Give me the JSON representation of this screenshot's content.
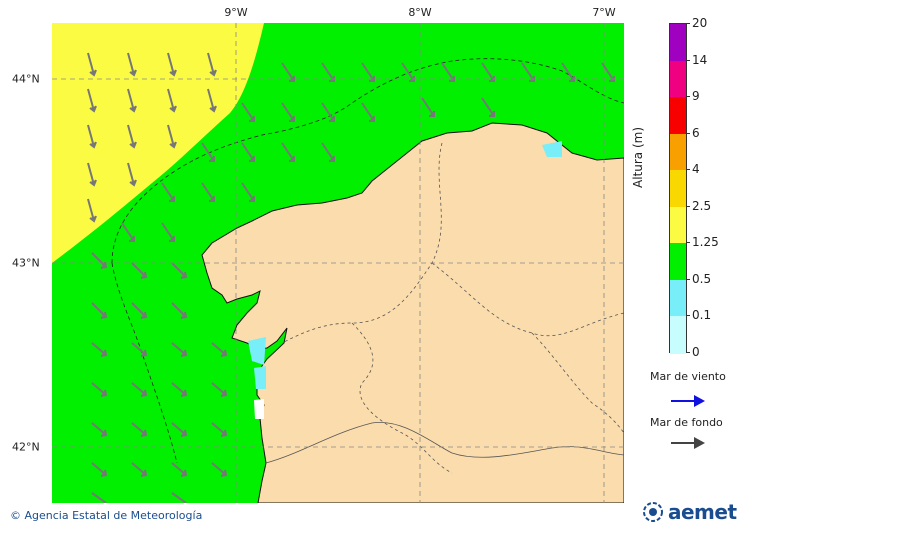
{
  "map": {
    "lon_labels": [
      "9°W",
      "8°W",
      "7°W"
    ],
    "lat_labels": [
      "44°N",
      "43°N",
      "42°N"
    ],
    "colors": {
      "land": "#fbdcac",
      "deep_sea": "#fbfb44",
      "coastal_sea": "#00f000",
      "calm_water": "#77eef8",
      "arrow": "#777777"
    }
  },
  "legend": {
    "title": "Altura (m)",
    "levels": [
      "20",
      "14",
      "9",
      "6",
      "4",
      "2.5",
      "1.25",
      "0.5",
      "0.1",
      "0"
    ],
    "colors": [
      "#a000c0",
      "#f00080",
      "#f80000",
      "#f8a000",
      "#f8d800",
      "#fbfb44",
      "#00f000",
      "#77eef8",
      "#c8fdfd"
    ]
  },
  "wind_sea": {
    "label": "Mar de viento",
    "color": "#1010e0",
    "icon": "arrow-right-icon"
  },
  "swell": {
    "label": "Mar de fondo",
    "color": "#444444",
    "icon": "arrow-right-icon"
  },
  "credits": {
    "text": "Agencia Estatal de Meteorología",
    "icon": "copyright-icon"
  },
  "logo": {
    "text": "aemet"
  }
}
